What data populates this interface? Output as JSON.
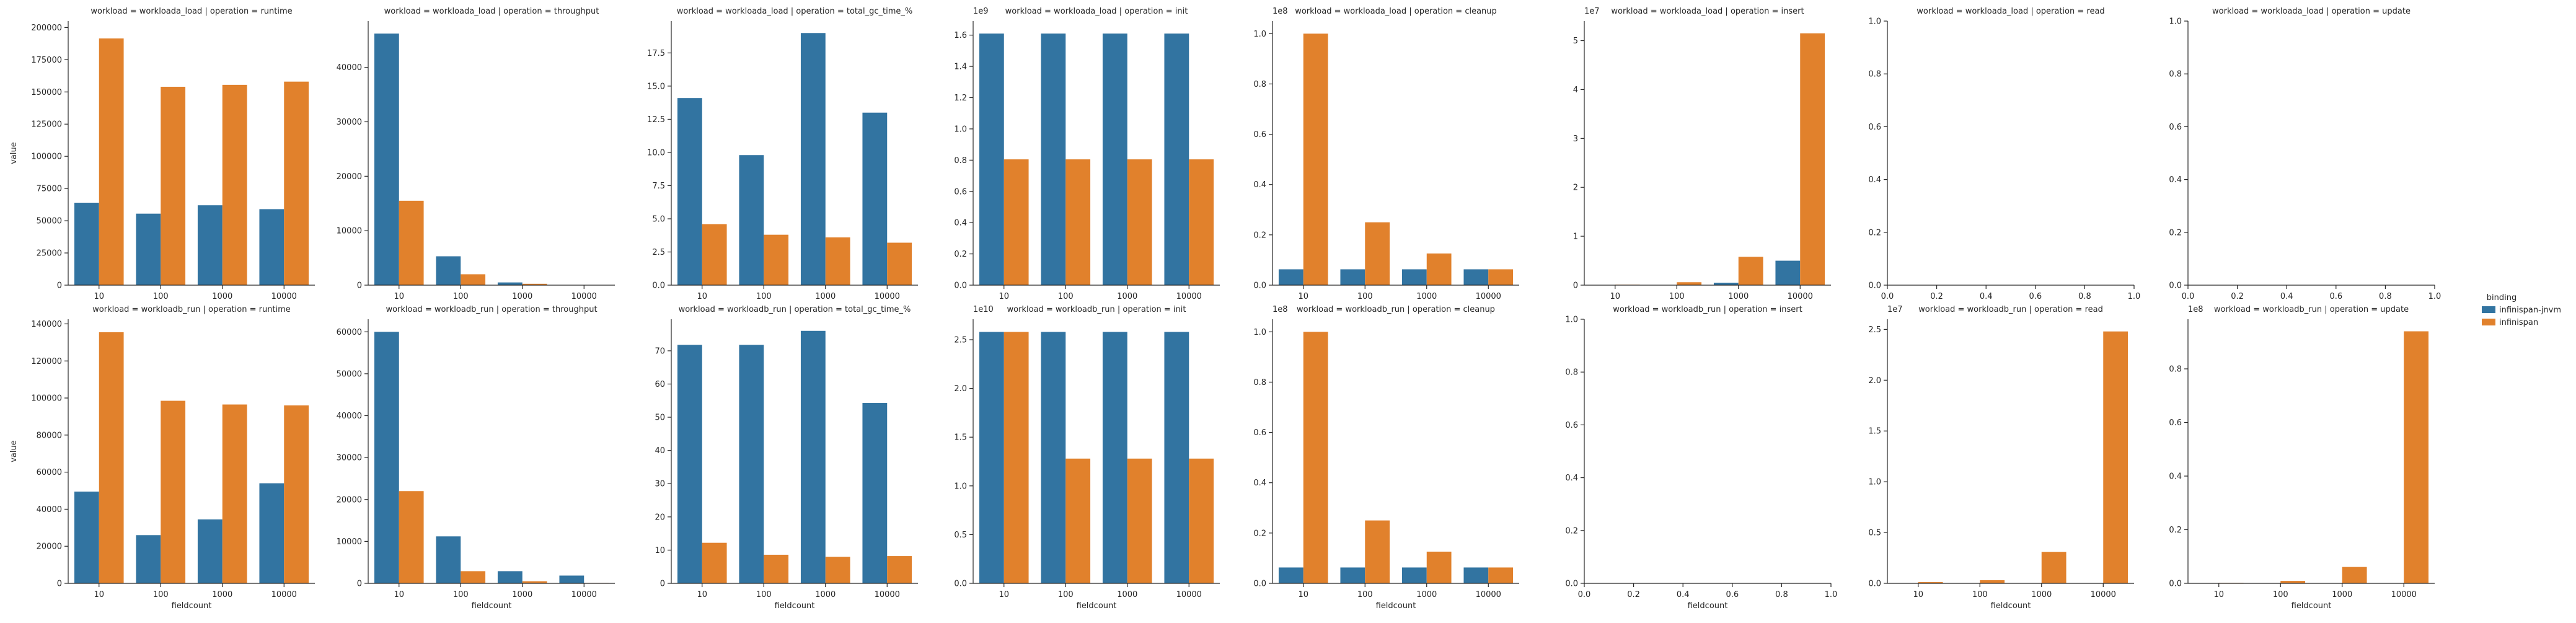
{
  "figure": {
    "legend": {
      "title": "binding",
      "entries": [
        "infinispan-jnvm",
        "infinispan"
      ],
      "placement": "right-center"
    },
    "colors": {
      "infinispan-jnvm": "#3274a1",
      "infinispan": "#e1812c",
      "axis": "#262626"
    },
    "y_axis_label": "value",
    "x_axis_label": "fieldcount",
    "grid": false
  },
  "chart_data": [
    {
      "type": "bar",
      "title": "workload = workloada_load | operation = runtime",
      "categories": [
        "10",
        "100",
        "1000",
        "10000"
      ],
      "ylim": [
        0,
        205000
      ],
      "yticks": [
        0,
        25000,
        50000,
        75000,
        100000,
        125000,
        150000,
        175000,
        200000
      ],
      "tick_decimals": 0,
      "offset": "",
      "series": [
        {
          "name": "infinispan-jnvm",
          "values": [
            64000,
            55500,
            62000,
            59000
          ]
        },
        {
          "name": "infinispan",
          "values": [
            191500,
            154000,
            155500,
            158000
          ]
        }
      ]
    },
    {
      "type": "bar",
      "title": "workload = workloada_load | operation = throughput",
      "categories": [
        "10",
        "100",
        "1000",
        "10000"
      ],
      "ylim": [
        0,
        48500
      ],
      "yticks": [
        0,
        10000,
        20000,
        30000,
        40000
      ],
      "tick_decimals": 0,
      "offset": "",
      "series": [
        {
          "name": "infinispan-jnvm",
          "values": [
            46200,
            5300,
            500,
            50
          ]
        },
        {
          "name": "infinispan",
          "values": [
            15500,
            2000,
            250,
            20
          ]
        }
      ]
    },
    {
      "type": "bar",
      "title": "workload = workloada_load | operation = total_gc_time_%",
      "categories": [
        "10",
        "100",
        "1000",
        "10000"
      ],
      "ylim": [
        0,
        19.9
      ],
      "yticks": [
        0,
        2.5,
        5.0,
        7.5,
        10.0,
        12.5,
        15.0,
        17.5
      ],
      "tick_decimals": 1,
      "offset": "",
      "series": [
        {
          "name": "infinispan-jnvm",
          "values": [
            14.1,
            9.8,
            19.0,
            13.0
          ]
        },
        {
          "name": "infinispan",
          "values": [
            4.6,
            3.8,
            3.6,
            3.2
          ]
        }
      ]
    },
    {
      "type": "bar",
      "title": "workload = workloada_load | operation = init",
      "categories": [
        "10",
        "100",
        "1000",
        "10000"
      ],
      "ylim": [
        0,
        1.69
      ],
      "yticks": [
        0,
        0.2,
        0.4,
        0.6,
        0.8,
        1.0,
        1.2,
        1.4,
        1.6
      ],
      "tick_decimals": 1,
      "offset": "1e9",
      "series": [
        {
          "name": "infinispan-jnvm",
          "values": [
            1.61,
            1.61,
            1.61,
            1.61
          ]
        },
        {
          "name": "infinispan",
          "values": [
            0.805,
            0.805,
            0.805,
            0.805
          ]
        }
      ]
    },
    {
      "type": "bar",
      "title": "workload = workloada_load | operation = cleanup",
      "categories": [
        "10",
        "100",
        "1000",
        "10000"
      ],
      "ylim": [
        0,
        1.05
      ],
      "yticks": [
        0,
        0.2,
        0.4,
        0.6,
        0.8,
        1.0
      ],
      "tick_decimals": 1,
      "offset": "1e8",
      "series": [
        {
          "name": "infinispan-jnvm",
          "values": [
            0.063,
            0.063,
            0.063,
            0.063
          ]
        },
        {
          "name": "infinispan",
          "values": [
            1.0,
            0.25,
            0.126,
            0.063
          ]
        }
      ]
    },
    {
      "type": "bar",
      "title": "workload = workloada_load | operation = insert",
      "categories": [
        "10",
        "100",
        "1000",
        "10000"
      ],
      "ylim": [
        0,
        5.4
      ],
      "yticks": [
        0,
        1,
        2,
        3,
        4,
        5
      ],
      "tick_decimals": 0,
      "offset": "1e7",
      "series": [
        {
          "name": "infinispan-jnvm",
          "values": [
            0.005,
            0.005,
            0.05,
            0.5
          ]
        },
        {
          "name": "infinispan",
          "values": [
            0.01,
            0.06,
            0.58,
            5.15
          ]
        }
      ]
    },
    {
      "type": "empty",
      "title": "workload = workloada_load | operation = read",
      "xlim": [
        0,
        1
      ],
      "xticks": [
        0,
        0.2,
        0.4,
        0.6,
        0.8,
        1.0
      ],
      "ylim": [
        0,
        1
      ],
      "yticks": [
        0,
        0.2,
        0.4,
        0.6,
        0.8,
        1.0
      ],
      "tick_decimals": 1,
      "offset": "",
      "series": []
    },
    {
      "type": "empty",
      "title": "workload = workloada_load | operation = update",
      "xlim": [
        0,
        1
      ],
      "xticks": [
        0,
        0.2,
        0.4,
        0.6,
        0.8,
        1.0
      ],
      "ylim": [
        0,
        1
      ],
      "yticks": [
        0,
        0.2,
        0.4,
        0.6,
        0.8,
        1.0
      ],
      "tick_decimals": 1,
      "offset": "",
      "series": []
    },
    {
      "type": "bar",
      "title": "workload = workloadb_run | operation = runtime",
      "categories": [
        "10",
        "100",
        "1000",
        "10000"
      ],
      "ylim": [
        0,
        142500
      ],
      "yticks": [
        0,
        20000,
        40000,
        60000,
        80000,
        100000,
        120000,
        140000
      ],
      "tick_decimals": 0,
      "offset": "",
      "series": [
        {
          "name": "infinispan-jnvm",
          "values": [
            49500,
            26000,
            34500,
            54000
          ]
        },
        {
          "name": "infinispan",
          "values": [
            135500,
            98500,
            96500,
            96000
          ]
        }
      ]
    },
    {
      "type": "bar",
      "title": "workload = workloadb_run | operation = throughput",
      "categories": [
        "10",
        "100",
        "1000",
        "10000"
      ],
      "ylim": [
        0,
        63000
      ],
      "yticks": [
        0,
        10000,
        20000,
        30000,
        40000,
        50000,
        60000
      ],
      "tick_decimals": 0,
      "offset": "",
      "series": [
        {
          "name": "infinispan-jnvm",
          "values": [
            60000,
            11200,
            2900,
            1850
          ]
        },
        {
          "name": "infinispan",
          "values": [
            22000,
            2900,
            500,
            100
          ]
        }
      ]
    },
    {
      "type": "bar",
      "title": "workload = workloadb_run | operation = total_gc_time_%",
      "categories": [
        "10",
        "100",
        "1000",
        "10000"
      ],
      "ylim": [
        0,
        79.5
      ],
      "yticks": [
        0,
        10,
        20,
        30,
        40,
        50,
        60,
        70
      ],
      "tick_decimals": 0,
      "offset": "",
      "series": [
        {
          "name": "infinispan-jnvm",
          "values": [
            71.8,
            71.8,
            76.0,
            54.3
          ]
        },
        {
          "name": "infinispan",
          "values": [
            12.2,
            8.6,
            8.0,
            8.2
          ]
        }
      ]
    },
    {
      "type": "bar",
      "title": "workload = workloadb_run | operation = init",
      "categories": [
        "10",
        "100",
        "1000",
        "10000"
      ],
      "ylim": [
        0,
        2.71
      ],
      "yticks": [
        0,
        0.5,
        1.0,
        1.5,
        2.0,
        2.5
      ],
      "tick_decimals": 1,
      "offset": "1e10",
      "series": [
        {
          "name": "infinispan-jnvm",
          "values": [
            2.58,
            2.58,
            2.58,
            2.58
          ]
        },
        {
          "name": "infinispan",
          "values": [
            2.58,
            1.28,
            1.28,
            1.28
          ]
        }
      ]
    },
    {
      "type": "bar",
      "title": "workload = workloadb_run | operation = cleanup",
      "categories": [
        "10",
        "100",
        "1000",
        "10000"
      ],
      "ylim": [
        0,
        1.05
      ],
      "yticks": [
        0,
        0.2,
        0.4,
        0.6,
        0.8,
        1.0
      ],
      "tick_decimals": 1,
      "offset": "1e8",
      "series": [
        {
          "name": "infinispan-jnvm",
          "values": [
            0.063,
            0.063,
            0.063,
            0.063
          ]
        },
        {
          "name": "infinispan",
          "values": [
            1.0,
            0.25,
            0.126,
            0.063
          ]
        }
      ]
    },
    {
      "type": "empty",
      "title": "workload = workloadb_run | operation = insert",
      "xlim": [
        0,
        1
      ],
      "xticks": [
        0,
        0.2,
        0.4,
        0.6,
        0.8,
        1.0
      ],
      "ylim": [
        0,
        1
      ],
      "yticks": [
        0,
        0.2,
        0.4,
        0.6,
        0.8,
        1.0
      ],
      "tick_decimals": 1,
      "offset": "",
      "series": []
    },
    {
      "type": "bar",
      "title": "workload = workloadb_run | operation = read",
      "categories": [
        "10",
        "100",
        "1000",
        "10000"
      ],
      "ylim": [
        0,
        2.6
      ],
      "yticks": [
        0,
        0.5,
        1.0,
        1.5,
        2.0,
        2.5
      ],
      "tick_decimals": 1,
      "offset": "1e7",
      "series": [
        {
          "name": "infinispan-jnvm",
          "values": [
            0,
            0,
            0,
            0
          ]
        },
        {
          "name": "infinispan",
          "values": [
            0.012,
            0.031,
            0.31,
            2.48
          ]
        }
      ]
    },
    {
      "type": "bar",
      "title": "workload = workloadb_run | operation = update",
      "categories": [
        "10",
        "100",
        "1000",
        "10000"
      ],
      "ylim": [
        0,
        0.985
      ],
      "yticks": [
        0,
        0.2,
        0.4,
        0.6,
        0.8
      ],
      "tick_decimals": 1,
      "offset": "1e8",
      "series": [
        {
          "name": "infinispan-jnvm",
          "values": [
            0,
            0,
            0,
            0
          ]
        },
        {
          "name": "infinispan",
          "values": [
            0.002,
            0.009,
            0.061,
            0.94
          ]
        }
      ]
    }
  ]
}
